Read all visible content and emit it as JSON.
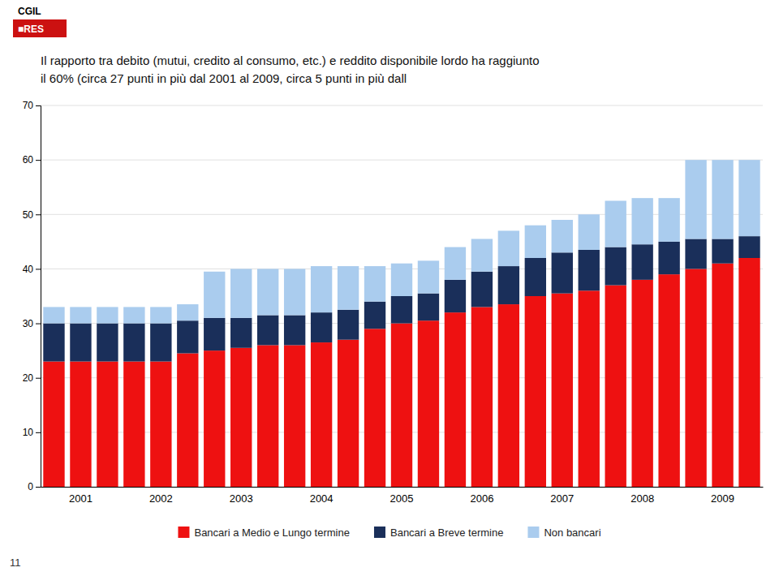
{
  "chart_data": {
    "type": "bar",
    "stacked": true,
    "title": "Il rapporto tra debito (mutui, credito al consumo, etc.) e reddito disponibile lordo ha raggiunto",
    "subtitle": "il 60% (circa 27 punti in più dal 2001 al 2009, circa 5 punti in più dall",
    "annotations": [
      "CGIL",
      "■RES",
      "11"
    ],
    "categories": [
      null,
      "2001",
      null,
      null,
      "2002",
      null,
      null,
      "2003",
      null,
      null,
      "2004",
      null,
      null,
      "2005",
      null,
      null,
      "2006",
      null,
      null,
      "2007",
      null,
      null,
      "2008",
      null,
      null,
      "2009",
      null
    ],
    "series": [
      {
        "name": "Bancari a Medio e Lungo termine",
        "color": "#ee1111",
        "values": [
          23.0,
          23.0,
          23.0,
          23.0,
          23.0,
          24.5,
          25.0,
          25.5,
          26.0,
          26.0,
          26.5,
          27.0,
          29.0,
          30.0,
          30.5,
          32.0,
          33.0,
          33.5,
          35.0,
          35.5,
          36.0,
          37.0,
          38.0,
          39.0,
          40.0,
          41.0,
          42.0
        ]
      },
      {
        "name": "Bancari a Breve termine",
        "color": "#1a2f5a",
        "values": [
          7.0,
          7.0,
          7.0,
          7.0,
          7.0,
          6.0,
          6.0,
          5.5,
          5.5,
          5.5,
          5.5,
          5.5,
          5.0,
          5.0,
          5.0,
          6.0,
          6.5,
          7.0,
          7.0,
          7.5,
          7.5,
          7.0,
          6.5,
          6.0,
          5.5,
          4.5,
          4.0
        ]
      },
      {
        "name": "Non bancari",
        "color": "#aaccee",
        "values": [
          3.0,
          3.0,
          3.0,
          3.0,
          3.0,
          3.0,
          8.5,
          9.0,
          8.5,
          8.5,
          8.5,
          8.0,
          6.5,
          6.0,
          6.0,
          6.0,
          6.0,
          6.5,
          6.0,
          6.0,
          6.5,
          8.5,
          8.5,
          8.0,
          14.5,
          14.5,
          14.0
        ]
      }
    ],
    "ylim": [
      0,
      70
    ],
    "yticks": [
      0,
      10,
      20,
      30,
      40,
      50,
      60,
      70
    ],
    "grid": true,
    "legend": "bottom"
  }
}
